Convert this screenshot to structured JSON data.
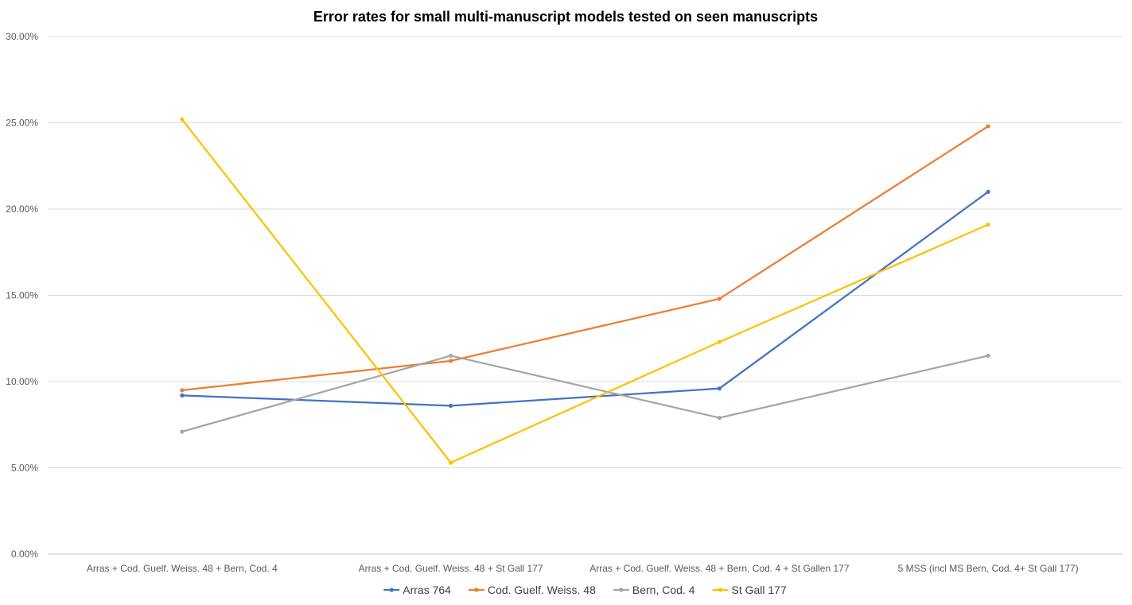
{
  "chart_data": {
    "type": "line",
    "title": "Error rates for small multi-manuscript models tested on seen manuscripts",
    "xlabel": "",
    "ylabel": "",
    "categories": [
      "Arras + Cod. Guelf. Weiss. 48 + Bern, Cod. 4",
      "Arras + Cod. Guelf. Weiss. 48 + St Gall 177",
      "Arras + Cod. Guelf. Weiss. 48 + Bern, Cod. 4 + St Gallen 177",
      "5 MSS (incl MS Bern, Cod. 4+ St Gall 177)"
    ],
    "y_tick_values": [
      0,
      5,
      10,
      15,
      20,
      25,
      30
    ],
    "y_tick_labels": [
      "0.00%",
      "5.00%",
      "10.00%",
      "15.00%",
      "20.00%",
      "25.00%",
      "30.00%"
    ],
    "ylim": [
      0,
      30
    ],
    "y_unit": "percent",
    "grid": true,
    "legend_position": "bottom",
    "series": [
      {
        "name": "Arras 764",
        "color": "#4472C4",
        "values": [
          9.2,
          8.6,
          9.6,
          21.0
        ]
      },
      {
        "name": "Cod. Guelf. Weiss. 48",
        "color": "#ED7D31",
        "values": [
          9.5,
          11.2,
          14.8,
          24.8
        ]
      },
      {
        "name": "Bern, Cod. 4",
        "color": "#A5A5A5",
        "values": [
          7.1,
          11.5,
          7.9,
          11.5
        ]
      },
      {
        "name": "St Gall 177",
        "color": "#FFC000",
        "values": [
          25.2,
          5.3,
          12.3,
          19.1
        ]
      }
    ]
  }
}
